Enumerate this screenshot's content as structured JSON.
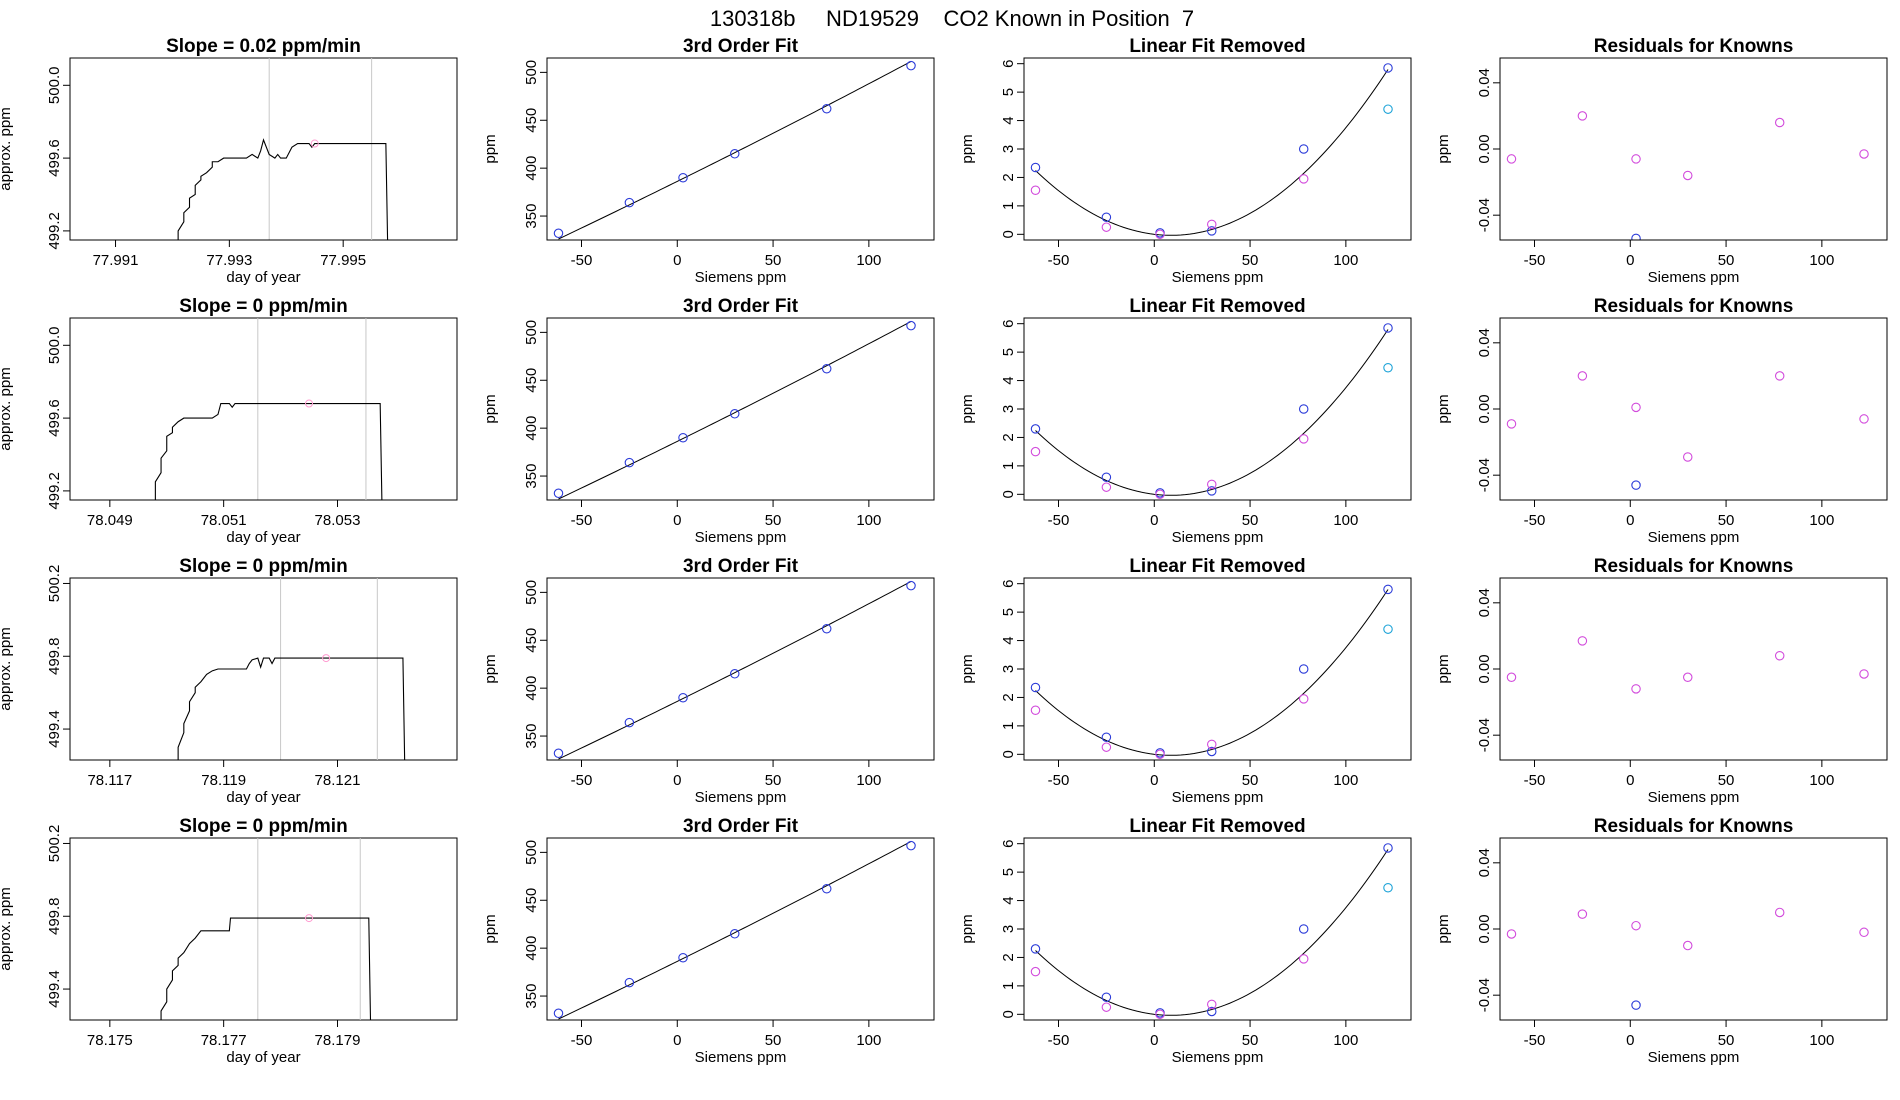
{
  "figure_title": "130318b     ND19529    CO2 Known in Position  7",
  "colors": {
    "trace": "#000000",
    "vline": "#c8c8c8",
    "marker_pink": "#ff9ad0",
    "blue": "#2b3bd9",
    "magenta": "#d24bdc",
    "cyan": "#1ca3d8"
  },
  "chart_data": [
    {
      "id": "ts1",
      "type": "line",
      "title": "Slope =  0.02  ppm/min",
      "xlabel": "day of year",
      "ylabel": "approx. ppm",
      "xlim": [
        77.9902,
        77.997
      ],
      "ylim": [
        499.15,
        500.15
      ],
      "xticks": [
        77.991,
        77.993,
        77.995
      ],
      "xticklabels": [
        "77.991",
        "77.993",
        "77.995"
      ],
      "yticks": [
        499.2,
        499.6,
        500.0
      ],
      "yticklabels": [
        "499.2",
        "499.6",
        "500.0"
      ],
      "vlines": [
        77.9937,
        77.9955
      ],
      "marker": [
        77.9945,
        499.68
      ],
      "x": [
        77.9921,
        77.9921,
        77.9922,
        77.9922,
        77.9923,
        77.9923,
        77.9924,
        77.9924,
        77.9925,
        77.9925,
        77.9926,
        77.9927,
        77.9927,
        77.9928,
        77.9929,
        77.993,
        77.9931,
        77.9932,
        77.9933,
        77.9934,
        77.9935,
        77.99355,
        77.9936,
        77.9937,
        77.9938,
        77.99385,
        77.9939,
        77.994,
        77.9941,
        77.9942,
        77.9943,
        77.9944,
        77.99445,
        77.9945,
        77.9946,
        77.995,
        77.9954,
        77.9956,
        77.99575,
        77.99578,
        77.996
      ],
      "y": [
        499.15,
        499.2,
        499.25,
        499.3,
        499.33,
        499.38,
        499.4,
        499.45,
        499.48,
        499.5,
        499.52,
        499.55,
        499.58,
        499.58,
        499.6,
        499.6,
        499.6,
        499.6,
        499.6,
        499.62,
        499.6,
        499.64,
        499.7,
        499.62,
        499.6,
        499.62,
        499.6,
        499.6,
        499.66,
        499.68,
        499.68,
        499.68,
        499.66,
        499.68,
        499.68,
        499.68,
        499.68,
        499.68,
        499.68,
        499.15,
        499.15
      ]
    },
    {
      "id": "fit1",
      "type": "scatter",
      "title": "3rd Order Fit",
      "xlabel": "Siemens ppm",
      "ylabel": "ppm",
      "xlim": [
        -68,
        134
      ],
      "ylim": [
        325,
        515
      ],
      "xticks": [
        -50,
        0,
        50,
        100
      ],
      "yticks": [
        350,
        400,
        450,
        500
      ],
      "line": "cubic",
      "coef": [
        386.2,
        0.989,
        0.000303,
        0
      ],
      "points": [
        {
          "x": [
            -62,
            -25,
            3,
            30,
            78,
            122
          ],
          "y": [
            332,
            364,
            390,
            415,
            462,
            507
          ],
          "color": "blue"
        }
      ]
    },
    {
      "id": "lin1",
      "type": "scatter",
      "title": "Linear Fit Removed",
      "xlabel": "Siemens ppm",
      "ylabel": "ppm",
      "xlim": [
        -68,
        134
      ],
      "ylim": [
        -0.2,
        6.2
      ],
      "xticks": [
        -50,
        0,
        50,
        100
      ],
      "yticks": [
        0,
        1,
        2,
        3,
        4,
        5,
        6
      ],
      "line": "quadratic",
      "coef": [
        0.0,
        -0.008,
        0.000455,
        0
      ],
      "points": [
        {
          "x": [
            -62,
            -25,
            3,
            30,
            78,
            122
          ],
          "y": [
            2.35,
            0.6,
            0.05,
            0.12,
            3.0,
            5.85
          ],
          "color": "blue"
        },
        {
          "x": [
            -62,
            -25,
            3,
            30,
            78
          ],
          "y": [
            1.55,
            0.25,
            0.0,
            0.35,
            1.95
          ],
          "color": "magenta"
        },
        {
          "x": [
            122
          ],
          "y": [
            4.4
          ],
          "color": "cyan"
        }
      ]
    },
    {
      "id": "res1",
      "type": "scatter",
      "title": "Residuals for Knowns",
      "xlabel": "Siemens ppm",
      "ylabel": "ppm",
      "xlim": [
        -68,
        134
      ],
      "ylim": [
        -0.055,
        0.055
      ],
      "xticks": [
        -50,
        0,
        50,
        100
      ],
      "yticks": [
        -0.04,
        0.0,
        0.04
      ],
      "yticklabels": [
        "-0.04",
        "0.00",
        "0.04"
      ],
      "points": [
        {
          "x": [
            -62,
            -25,
            3,
            30,
            78,
            122
          ],
          "y": [
            -0.006,
            0.02,
            -0.006,
            -0.016,
            0.016,
            -0.003
          ],
          "color": "magenta"
        },
        {
          "x": [
            3
          ],
          "y": [
            -0.054
          ],
          "color": "blue"
        }
      ]
    },
    {
      "id": "ts2",
      "type": "line",
      "title": "Slope =  0  ppm/min",
      "xlabel": "day of year",
      "ylabel": "approx. ppm",
      "xlim": [
        78.0483,
        78.0551
      ],
      "ylim": [
        499.15,
        500.15
      ],
      "xticks": [
        78.049,
        78.051,
        78.053
      ],
      "xticklabels": [
        "78.049",
        "78.051",
        "78.053"
      ],
      "yticks": [
        499.2,
        499.6,
        500.0
      ],
      "yticklabels": [
        "499.2",
        "499.6",
        "500.0"
      ],
      "vlines": [
        78.0516,
        78.0535
      ],
      "marker": [
        78.0525,
        499.68
      ],
      "x": [
        78.0498,
        78.0498,
        78.0499,
        78.0499,
        78.05,
        78.05,
        78.0501,
        78.0501,
        78.0502,
        78.0503,
        78.0504,
        78.0505,
        78.0506,
        78.0507,
        78.0508,
        78.0509,
        78.05095,
        78.051,
        78.0511,
        78.05115,
        78.0512,
        78.0513,
        78.052,
        78.053,
        78.05375,
        78.05378,
        78.054
      ],
      "y": [
        499.15,
        499.25,
        499.3,
        499.38,
        499.42,
        499.5,
        499.52,
        499.55,
        499.58,
        499.6,
        499.6,
        499.6,
        499.6,
        499.6,
        499.6,
        499.62,
        499.68,
        499.68,
        499.68,
        499.66,
        499.68,
        499.68,
        499.68,
        499.68,
        499.68,
        499.15,
        499.15
      ]
    },
    {
      "id": "fit2",
      "type": "scatter",
      "title": "3rd Order Fit",
      "xlabel": "Siemens ppm",
      "ylabel": "ppm",
      "xlim": [
        -68,
        134
      ],
      "ylim": [
        325,
        515
      ],
      "xticks": [
        -50,
        0,
        50,
        100
      ],
      "yticks": [
        350,
        400,
        450,
        500
      ],
      "line": "cubic",
      "coef": [
        386.2,
        0.989,
        0.000303,
        0
      ],
      "points": [
        {
          "x": [
            -62,
            -25,
            3,
            30,
            78,
            122
          ],
          "y": [
            332,
            364,
            390,
            415,
            462,
            507
          ],
          "color": "blue"
        }
      ]
    },
    {
      "id": "lin2",
      "type": "scatter",
      "title": "Linear Fit Removed",
      "xlabel": "Siemens ppm",
      "ylabel": "ppm",
      "xlim": [
        -68,
        134
      ],
      "ylim": [
        -0.2,
        6.2
      ],
      "xticks": [
        -50,
        0,
        50,
        100
      ],
      "yticks": [
        0,
        1,
        2,
        3,
        4,
        5,
        6
      ],
      "line": "quadratic",
      "coef": [
        0.0,
        -0.008,
        0.000455,
        0
      ],
      "points": [
        {
          "x": [
            -62,
            -25,
            3,
            30,
            78,
            122
          ],
          "y": [
            2.3,
            0.6,
            0.05,
            0.12,
            3.0,
            5.85
          ],
          "color": "blue"
        },
        {
          "x": [
            -62,
            -25,
            3,
            30,
            78
          ],
          "y": [
            1.5,
            0.25,
            0.0,
            0.35,
            1.95
          ],
          "color": "magenta"
        },
        {
          "x": [
            122
          ],
          "y": [
            4.45
          ],
          "color": "cyan"
        }
      ]
    },
    {
      "id": "res2",
      "type": "scatter",
      "title": "Residuals for Knowns",
      "xlabel": "Siemens ppm",
      "ylabel": "ppm",
      "xlim": [
        -68,
        134
      ],
      "ylim": [
        -0.055,
        0.055
      ],
      "xticks": [
        -50,
        0,
        50,
        100
      ],
      "yticks": [
        -0.04,
        0.0,
        0.04
      ],
      "yticklabels": [
        "-0.04",
        "0.00",
        "0.04"
      ],
      "points": [
        {
          "x": [
            -62,
            -25,
            3,
            30,
            78,
            122
          ],
          "y": [
            -0.009,
            0.02,
            0.001,
            -0.029,
            0.02,
            -0.006
          ],
          "color": "magenta"
        },
        {
          "x": [
            3
          ],
          "y": [
            -0.046
          ],
          "color": "blue"
        }
      ]
    },
    {
      "id": "ts3",
      "type": "line",
      "title": "Slope =  0  ppm/min",
      "xlabel": "day of year",
      "ylabel": "approx. ppm",
      "xlim": [
        78.1163,
        78.1231
      ],
      "ylim": [
        499.23,
        500.23
      ],
      "xticks": [
        78.117,
        78.119,
        78.121
      ],
      "xticklabels": [
        "78.117",
        "78.119",
        "78.121"
      ],
      "yticks": [
        499.4,
        499.8,
        500.2
      ],
      "yticklabels": [
        "499.4",
        "499.8",
        "500.2"
      ],
      "vlines": [
        78.12,
        78.1217
      ],
      "marker": [
        78.1208,
        499.79
      ],
      "x": [
        78.1182,
        78.1182,
        78.1183,
        78.1183,
        78.1184,
        78.1184,
        78.1185,
        78.1185,
        78.1186,
        78.1187,
        78.1188,
        78.1189,
        78.119,
        78.1191,
        78.1192,
        78.1193,
        78.1194,
        78.11945,
        78.1195,
        78.1196,
        78.11965,
        78.1197,
        78.1198,
        78.11985,
        78.1199,
        78.12,
        78.121,
        78.122,
        78.12215,
        78.12218,
        78.1225
      ],
      "y": [
        499.23,
        499.3,
        499.38,
        499.43,
        499.5,
        499.55,
        499.6,
        499.63,
        499.66,
        499.7,
        499.72,
        499.73,
        499.73,
        499.73,
        499.73,
        499.73,
        499.73,
        499.76,
        499.78,
        499.79,
        499.74,
        499.79,
        499.79,
        499.76,
        499.79,
        499.79,
        499.79,
        499.79,
        499.79,
        499.23,
        499.23
      ]
    },
    {
      "id": "fit3",
      "type": "scatter",
      "title": "3rd Order Fit",
      "xlabel": "Siemens ppm",
      "ylabel": "ppm",
      "xlim": [
        -68,
        134
      ],
      "ylim": [
        325,
        515
      ],
      "xticks": [
        -50,
        0,
        50,
        100
      ],
      "yticks": [
        350,
        400,
        450,
        500
      ],
      "line": "cubic",
      "coef": [
        386.2,
        0.989,
        0.000303,
        0
      ],
      "points": [
        {
          "x": [
            -62,
            -25,
            3,
            30,
            78,
            122
          ],
          "y": [
            332,
            364,
            390,
            415,
            462,
            507
          ],
          "color": "blue"
        }
      ]
    },
    {
      "id": "lin3",
      "type": "scatter",
      "title": "Linear Fit Removed",
      "xlabel": "Siemens ppm",
      "ylabel": "ppm",
      "xlim": [
        -68,
        134
      ],
      "ylim": [
        -0.2,
        6.2
      ],
      "xticks": [
        -50,
        0,
        50,
        100
      ],
      "yticks": [
        0,
        1,
        2,
        3,
        4,
        5,
        6
      ],
      "line": "quadratic",
      "coef": [
        0.0,
        -0.008,
        0.000455,
        0
      ],
      "points": [
        {
          "x": [
            -62,
            -25,
            3,
            30,
            78,
            122
          ],
          "y": [
            2.35,
            0.6,
            0.05,
            0.1,
            3.0,
            5.8
          ],
          "color": "blue"
        },
        {
          "x": [
            -62,
            -25,
            3,
            30,
            78
          ],
          "y": [
            1.55,
            0.25,
            0.0,
            0.35,
            1.95
          ],
          "color": "magenta"
        },
        {
          "x": [
            122
          ],
          "y": [
            4.4
          ],
          "color": "cyan"
        }
      ]
    },
    {
      "id": "res3",
      "type": "scatter",
      "title": "Residuals for Knowns",
      "xlabel": "Siemens ppm",
      "ylabel": "ppm",
      "xlim": [
        -68,
        134
      ],
      "ylim": [
        -0.055,
        0.055
      ],
      "xticks": [
        -50,
        0,
        50,
        100
      ],
      "yticks": [
        -0.04,
        0.0,
        0.04
      ],
      "yticklabels": [
        "-0.04",
        "0.00",
        "0.04"
      ],
      "points": [
        {
          "x": [
            -62,
            -25,
            3,
            30,
            78,
            122
          ],
          "y": [
            -0.005,
            0.017,
            -0.012,
            -0.005,
            0.008,
            -0.003
          ],
          "color": "magenta"
        }
      ]
    },
    {
      "id": "ts4",
      "type": "line",
      "title": "Slope =  0  ppm/min",
      "xlabel": "day of year",
      "ylabel": "approx. ppm",
      "xlim": [
        78.1743,
        78.1811
      ],
      "ylim": [
        499.23,
        500.23
      ],
      "xticks": [
        78.175,
        78.177,
        78.179
      ],
      "xticklabels": [
        "78.175",
        "78.177",
        "78.179"
      ],
      "yticks": [
        499.4,
        499.8,
        500.2
      ],
      "yticklabels": [
        "499.4",
        "499.8",
        "500.2"
      ],
      "vlines": [
        78.1776,
        78.1794
      ],
      "marker": [
        78.1785,
        499.79
      ],
      "x": [
        78.1759,
        78.1759,
        78.176,
        78.176,
        78.1761,
        78.1761,
        78.1762,
        78.1762,
        78.1763,
        78.1764,
        78.1765,
        78.1766,
        78.1767,
        78.1768,
        78.1769,
        78.177,
        78.1771,
        78.17712,
        78.1772,
        78.178,
        78.179,
        78.17955,
        78.17958,
        78.18
      ],
      "y": [
        499.23,
        499.28,
        499.33,
        499.4,
        499.45,
        499.5,
        499.53,
        499.57,
        499.6,
        499.65,
        499.68,
        499.72,
        499.72,
        499.72,
        499.72,
        499.72,
        499.72,
        499.79,
        499.79,
        499.79,
        499.79,
        499.79,
        499.23,
        499.23
      ]
    },
    {
      "id": "fit4",
      "type": "scatter",
      "title": "3rd Order Fit",
      "xlabel": "Siemens ppm",
      "ylabel": "ppm",
      "xlim": [
        -68,
        134
      ],
      "ylim": [
        325,
        515
      ],
      "xticks": [
        -50,
        0,
        50,
        100
      ],
      "yticks": [
        350,
        400,
        450,
        500
      ],
      "line": "cubic",
      "coef": [
        386.2,
        0.989,
        0.000303,
        0
      ],
      "points": [
        {
          "x": [
            -62,
            -25,
            3,
            30,
            78,
            122
          ],
          "y": [
            332,
            364,
            390,
            415,
            462,
            507
          ],
          "color": "blue"
        }
      ]
    },
    {
      "id": "lin4",
      "type": "scatter",
      "title": "Linear Fit Removed",
      "xlabel": "Siemens ppm",
      "ylabel": "ppm",
      "xlim": [
        -68,
        134
      ],
      "ylim": [
        -0.2,
        6.2
      ],
      "xticks": [
        -50,
        0,
        50,
        100
      ],
      "yticks": [
        0,
        1,
        2,
        3,
        4,
        5,
        6
      ],
      "line": "quadratic",
      "coef": [
        0.0,
        -0.008,
        0.000455,
        0
      ],
      "points": [
        {
          "x": [
            -62,
            -25,
            3,
            30,
            78,
            122
          ],
          "y": [
            2.3,
            0.6,
            0.05,
            0.1,
            3.0,
            5.85
          ],
          "color": "blue"
        },
        {
          "x": [
            -62,
            -25,
            3,
            30,
            78
          ],
          "y": [
            1.5,
            0.25,
            0.0,
            0.35,
            1.95
          ],
          "color": "magenta"
        },
        {
          "x": [
            122
          ],
          "y": [
            4.45
          ],
          "color": "cyan"
        }
      ]
    },
    {
      "id": "res4",
      "type": "scatter",
      "title": "Residuals for Knowns",
      "xlabel": "Siemens ppm",
      "ylabel": "ppm",
      "xlim": [
        -68,
        134
      ],
      "ylim": [
        -0.055,
        0.055
      ],
      "xticks": [
        -50,
        0,
        50,
        100
      ],
      "yticks": [
        -0.04,
        0.0,
        0.04
      ],
      "yticklabels": [
        "-0.04",
        "0.00",
        "0.04"
      ],
      "points": [
        {
          "x": [
            -62,
            -25,
            3,
            30,
            78,
            122
          ],
          "y": [
            -0.003,
            0.009,
            0.002,
            -0.01,
            0.01,
            -0.002
          ],
          "color": "magenta"
        },
        {
          "x": [
            3
          ],
          "y": [
            -0.046
          ],
          "color": "blue"
        }
      ]
    }
  ]
}
